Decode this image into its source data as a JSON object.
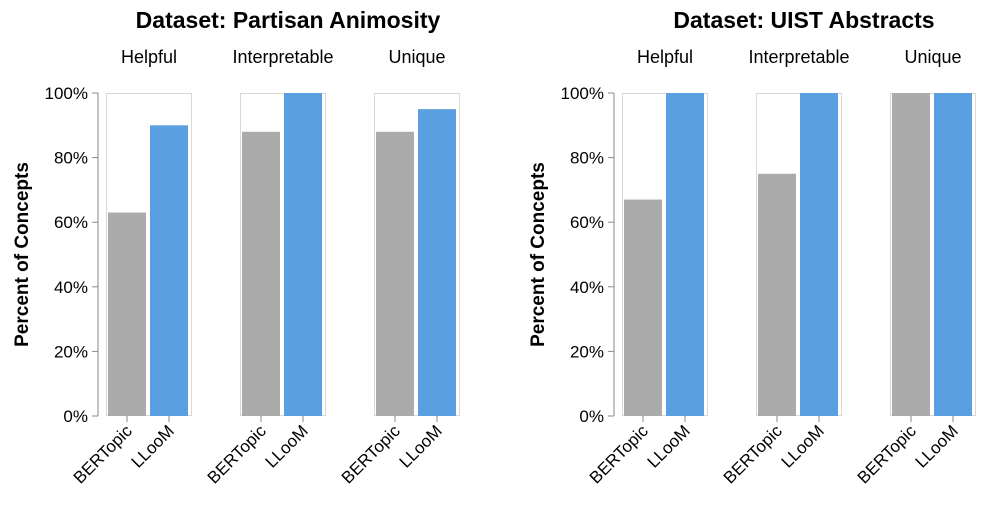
{
  "colors": {
    "BERTopic": "#ababab",
    "LLooM": "#5a9fe0",
    "frame": "#d8d8d8",
    "axis": "#888888"
  },
  "chart_data": [
    {
      "type": "bar",
      "title": "Dataset: Partisan Animosity",
      "ylabel": "Percent of Concepts",
      "ylim": [
        0,
        100
      ],
      "yticks": [
        "0%",
        "20%",
        "40%",
        "60%",
        "80%",
        "100%"
      ],
      "categories": [
        "BERTopic",
        "LLooM"
      ],
      "facets": [
        {
          "name": "Helpful",
          "values": [
            63,
            90
          ]
        },
        {
          "name": "Interpretable",
          "values": [
            88,
            100
          ]
        },
        {
          "name": "Unique",
          "values": [
            88,
            95
          ]
        }
      ]
    },
    {
      "type": "bar",
      "title": "Dataset: UIST Abstracts",
      "ylabel": "Percent of Concepts",
      "ylim": [
        0,
        100
      ],
      "yticks": [
        "0%",
        "20%",
        "40%",
        "60%",
        "80%",
        "100%"
      ],
      "categories": [
        "BERTopic",
        "LLooM"
      ],
      "facets": [
        {
          "name": "Helpful",
          "values": [
            67,
            100
          ]
        },
        {
          "name": "Interpretable",
          "values": [
            75,
            100
          ]
        },
        {
          "name": "Unique",
          "values": [
            100,
            100
          ]
        }
      ]
    }
  ]
}
